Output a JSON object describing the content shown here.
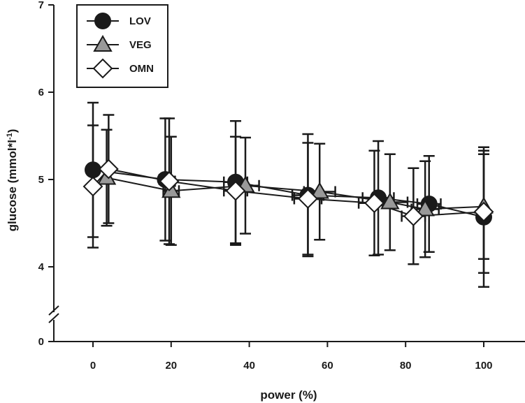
{
  "chart_data": {
    "type": "line",
    "title": "",
    "xlabel": "power (%)",
    "ylabel": "glucose (mmol*l",
    "ylabel_sup": "-1",
    "ylabel_close": ")",
    "xlim": [
      -10,
      105
    ],
    "ylim": [
      0,
      7
    ],
    "y_axis_break": [
      0,
      3.3
    ],
    "xticks": [
      "0",
      "20",
      "40",
      "60",
      "80",
      "100"
    ],
    "xtick_values": [
      0,
      20,
      40,
      60,
      80,
      100
    ],
    "yticks": [
      "0",
      "4",
      "5",
      "6",
      "7"
    ],
    "ytick_values": [
      0,
      4,
      5,
      6,
      7
    ],
    "legend_position": "top-left",
    "grid": false,
    "series": [
      {
        "name": "LOV",
        "marker": "circle",
        "color": "#1a1a1a",
        "x": [
          0,
          18.5,
          36.5,
          55,
          73,
          86,
          100
        ],
        "y": [
          5.11,
          5.0,
          4.97,
          4.82,
          4.79,
          4.72,
          4.57
        ],
        "yerr": [
          0.77,
          0.7,
          0.7,
          0.7,
          0.65,
          0.55,
          0.8
        ],
        "xerr": [
          0,
          1.5,
          3,
          4,
          4,
          3,
          0
        ]
      },
      {
        "name": "VEG",
        "marker": "triangle",
        "color": "#999999",
        "x": [
          3.5,
          20,
          39,
          58,
          76,
          85,
          100
        ],
        "y": [
          5.02,
          4.87,
          4.93,
          4.86,
          4.74,
          4.66,
          4.69
        ],
        "yerr": [
          0.55,
          0.62,
          0.55,
          0.55,
          0.55,
          0.55,
          0.6
        ],
        "xerr": [
          0,
          2,
          3.5,
          4,
          4.5,
          3.5,
          0
        ]
      },
      {
        "name": "OMN",
        "marker": "diamond",
        "color": "#ffffff",
        "x": [
          0,
          4,
          19.5,
          36.5,
          55,
          72,
          82,
          100
        ],
        "y": [
          4.92,
          5.12,
          4.98,
          4.87,
          4.78,
          4.73,
          4.58,
          4.63
        ],
        "yerr": [
          0.7,
          0.62,
          0.72,
          0.62,
          0.64,
          0.6,
          0.55,
          0.7
        ],
        "xerr": [
          0,
          0,
          1.5,
          3,
          3.5,
          4,
          3,
          0
        ]
      }
    ]
  }
}
